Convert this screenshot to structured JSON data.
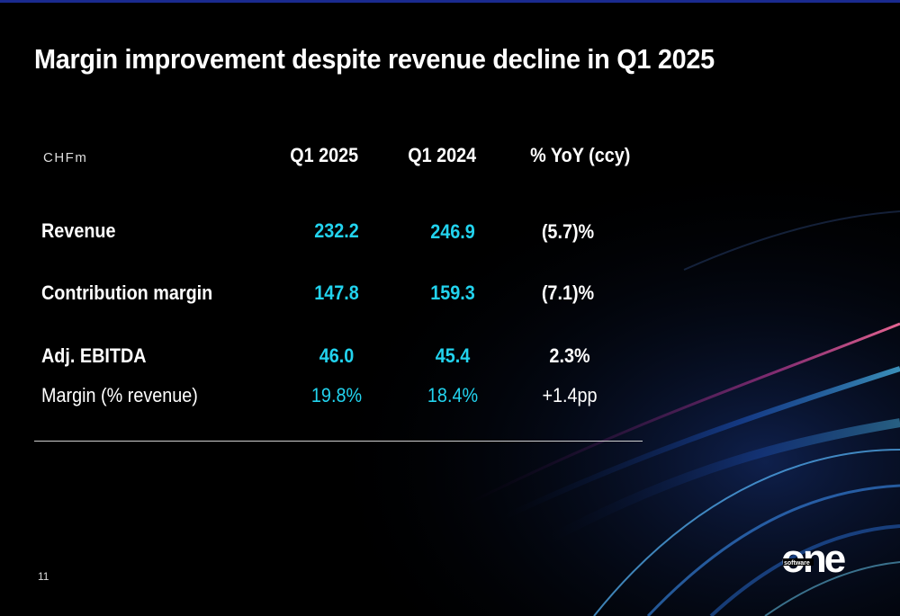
{
  "slide": {
    "title": "Margin improvement despite revenue decline in Q1 2025",
    "page_number": "11"
  },
  "table": {
    "unit_label": "CHFm",
    "columns": [
      "Q1 2025",
      "Q1 2024",
      "% YoY (ccy)"
    ],
    "rows": [
      {
        "label": "Revenue",
        "q1_2025": "232.2",
        "q1_2024": "246.9",
        "yoy": "(5.7)%"
      },
      {
        "label": "Contribution margin",
        "q1_2025": "147.8",
        "q1_2024": "159.3",
        "yoy": "(7.1)%"
      },
      {
        "label": "Adj. EBITDA",
        "q1_2025": "46.0",
        "q1_2024": "45.4",
        "yoy": "2.3%"
      },
      {
        "label": "Margin (% revenue)",
        "q1_2025": "19.8%",
        "q1_2024": "18.4%",
        "yoy": "+1.4pp"
      }
    ]
  },
  "logo": {
    "small_text": "software",
    "big_text": "one"
  },
  "colors": {
    "background": "#000000",
    "accent_cyan": "#22d3ee",
    "text": "#ffffff"
  }
}
